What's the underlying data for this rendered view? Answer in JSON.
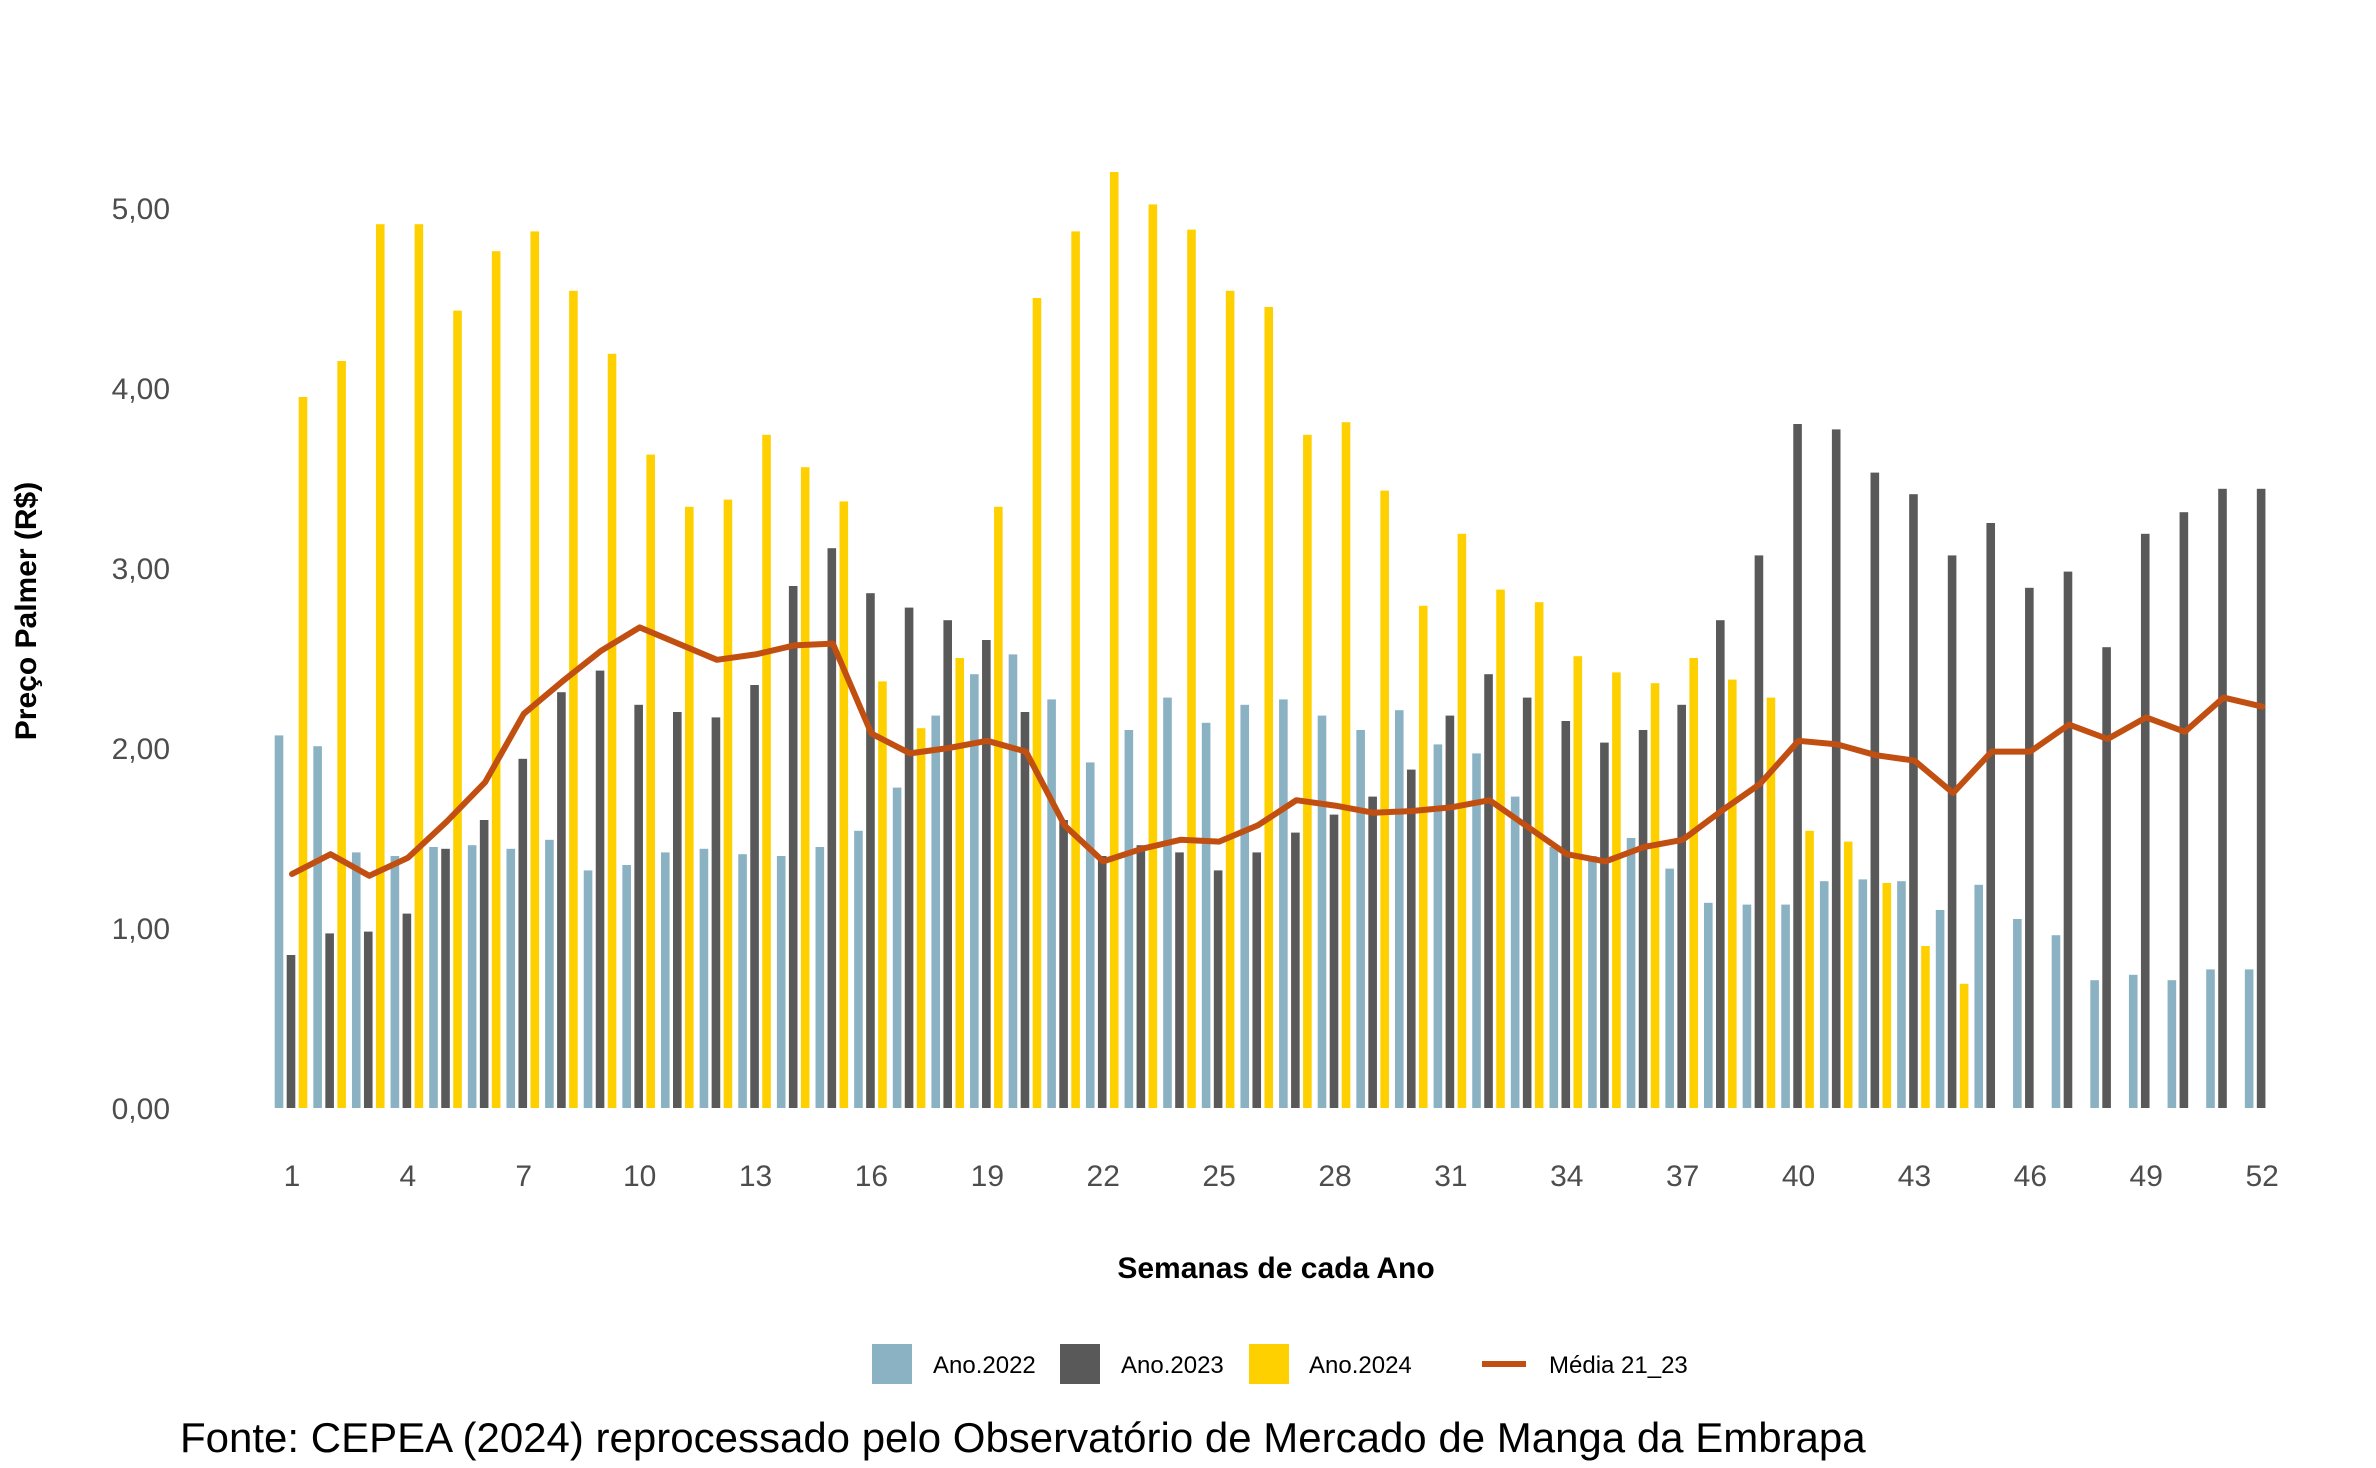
{
  "chart_data": {
    "type": "bar",
    "xlabel": "Semanas de cada Ano",
    "ylabel": "Preço Palmer (R$)",
    "ylim": [
      0,
      5.5
    ],
    "yticks": [
      "0,00",
      "1,00",
      "2,00",
      "3,00",
      "4,00",
      "5,00"
    ],
    "ytick_values": [
      0,
      1,
      2,
      3,
      4,
      5
    ],
    "xticks": [
      "1",
      "4",
      "7",
      "10",
      "13",
      "16",
      "19",
      "22",
      "25",
      "28",
      "31",
      "34",
      "37",
      "40",
      "43",
      "46",
      "49",
      "52"
    ],
    "xtick_values": [
      1,
      4,
      7,
      10,
      13,
      16,
      19,
      22,
      25,
      28,
      31,
      34,
      37,
      40,
      43,
      46,
      49,
      52
    ],
    "categories": [
      1,
      2,
      3,
      4,
      5,
      6,
      7,
      8,
      9,
      10,
      11,
      12,
      13,
      14,
      15,
      16,
      17,
      18,
      19,
      20,
      21,
      22,
      23,
      24,
      25,
      26,
      27,
      28,
      29,
      30,
      31,
      32,
      33,
      34,
      35,
      36,
      37,
      38,
      39,
      40,
      41,
      42,
      43,
      44,
      45,
      46,
      47,
      48,
      49,
      50,
      51,
      52
    ],
    "grid": false,
    "legend_position": "bottom",
    "series": [
      {
        "name": "Ano.2022",
        "kind": "bar",
        "color": "#8bb2c3",
        "values": [
          2.07,
          2.01,
          1.42,
          1.4,
          1.45,
          1.46,
          1.44,
          1.49,
          1.32,
          1.35,
          1.42,
          1.44,
          1.41,
          1.4,
          1.45,
          1.54,
          1.78,
          2.18,
          2.41,
          2.52,
          2.27,
          1.92,
          2.1,
          2.28,
          2.14,
          2.24,
          2.27,
          2.18,
          2.1,
          2.21,
          2.02,
          1.97,
          1.73,
          1.45,
          1.4,
          1.5,
          1.33,
          1.14,
          1.13,
          1.13,
          1.26,
          1.27,
          1.26,
          1.1,
          1.24,
          1.05,
          0.96,
          0.71,
          0.74,
          0.71,
          0.77,
          0.77
        ]
      },
      {
        "name": "Ano.2023",
        "kind": "bar",
        "color": "#595959",
        "values": [
          0.85,
          0.97,
          0.98,
          1.08,
          1.44,
          1.6,
          1.94,
          2.31,
          2.43,
          2.24,
          2.2,
          2.17,
          2.35,
          2.9,
          3.11,
          2.86,
          2.78,
          2.71,
          2.6,
          2.2,
          1.6,
          1.4,
          1.46,
          1.42,
          1.32,
          1.42,
          1.53,
          1.63,
          1.73,
          1.88,
          2.18,
          2.41,
          2.28,
          2.15,
          2.03,
          2.1,
          2.24,
          2.71,
          3.07,
          3.8,
          3.77,
          3.53,
          3.41,
          3.07,
          3.25,
          2.89,
          2.98,
          2.56,
          3.19,
          3.31,
          3.44,
          3.44
        ]
      },
      {
        "name": "Ano.2024",
        "kind": "bar",
        "color": "#ffd000",
        "values": [
          3.95,
          4.15,
          4.91,
          4.91,
          4.43,
          4.76,
          4.87,
          4.54,
          4.19,
          3.63,
          3.34,
          3.38,
          3.74,
          3.56,
          3.37,
          2.37,
          2.11,
          2.5,
          3.34,
          4.5,
          4.87,
          5.2,
          5.02,
          4.88,
          4.54,
          4.45,
          3.74,
          3.81,
          3.43,
          2.79,
          3.19,
          2.88,
          2.81,
          2.51,
          2.42,
          2.36,
          2.5,
          2.38,
          2.28,
          1.54,
          1.48,
          1.25,
          0.9,
          0.69,
          null,
          null,
          null,
          null,
          null,
          null,
          null,
          null
        ]
      },
      {
        "name": "Média 21_23",
        "kind": "line",
        "color": "#c24f12",
        "values": [
          1.3,
          1.41,
          1.29,
          1.39,
          1.59,
          1.81,
          2.19,
          2.37,
          2.54,
          2.67,
          2.58,
          2.49,
          2.52,
          2.57,
          2.58,
          2.08,
          1.97,
          2.0,
          2.04,
          1.98,
          1.57,
          1.37,
          1.44,
          1.49,
          1.48,
          1.57,
          1.71,
          1.68,
          1.64,
          1.65,
          1.67,
          1.71,
          1.56,
          1.41,
          1.37,
          1.45,
          1.49,
          1.65,
          1.8,
          2.04,
          2.02,
          1.96,
          1.93,
          1.75,
          1.98,
          1.98,
          2.13,
          2.05,
          2.17,
          2.09,
          2.28,
          2.23
        ]
      }
    ],
    "source": "Fonte: CEPEA (2024) reprocessado pelo Observatório de Mercado de Manga da Embrapa"
  }
}
